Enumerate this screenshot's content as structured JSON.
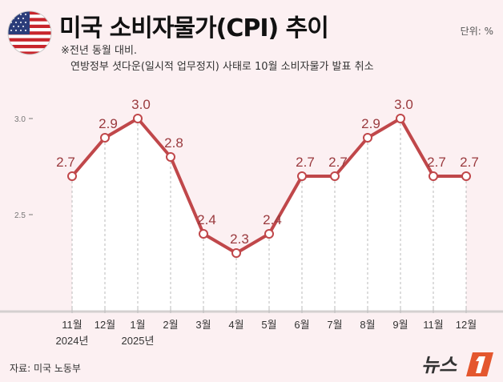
{
  "header": {
    "title": "미국 소비자물가(CPI) 추이",
    "unit": "단위: %",
    "note1": "※전년 동월 대비.",
    "note2": "연방정부 셧다운(일시적 업무정지) 사태로 10월 소비자물가 발표 취소",
    "flag_icon": "us-flag-icon"
  },
  "footer": {
    "source": "자료: 미국 노동부",
    "logo_text": "뉴스1"
  },
  "colors": {
    "line": "#c0474a",
    "background": "#fcf0f2",
    "area": "#ffffff",
    "label": "#9a3a3e"
  },
  "chart_data": {
    "type": "line",
    "categories": [
      "11월",
      "12월",
      "1월",
      "2월",
      "3월",
      "4월",
      "5월",
      "6월",
      "7월",
      "8월",
      "9월",
      "11월",
      "12월"
    ],
    "year_labels": [
      {
        "index": 0,
        "label": "2024년"
      },
      {
        "index": 2,
        "label": "2025년"
      }
    ],
    "values": [
      2.7,
      2.9,
      3.0,
      2.8,
      2.4,
      2.3,
      2.4,
      2.7,
      2.7,
      2.9,
      3.0,
      2.7,
      2.7
    ],
    "value_labels": [
      "2.7",
      "2.9",
      "3.0",
      "2.8",
      "2.4",
      "2.3",
      "2.4",
      "2.7",
      "2.7",
      "2.9",
      "3.0",
      "2.7",
      "2.7"
    ],
    "yticks": [
      {
        "value": 2.5,
        "label": "2.5"
      },
      {
        "value": 3.0,
        "label": "3.0"
      }
    ],
    "ylim": [
      1.99,
      3.0
    ],
    "grid": false,
    "area_fill": true
  }
}
